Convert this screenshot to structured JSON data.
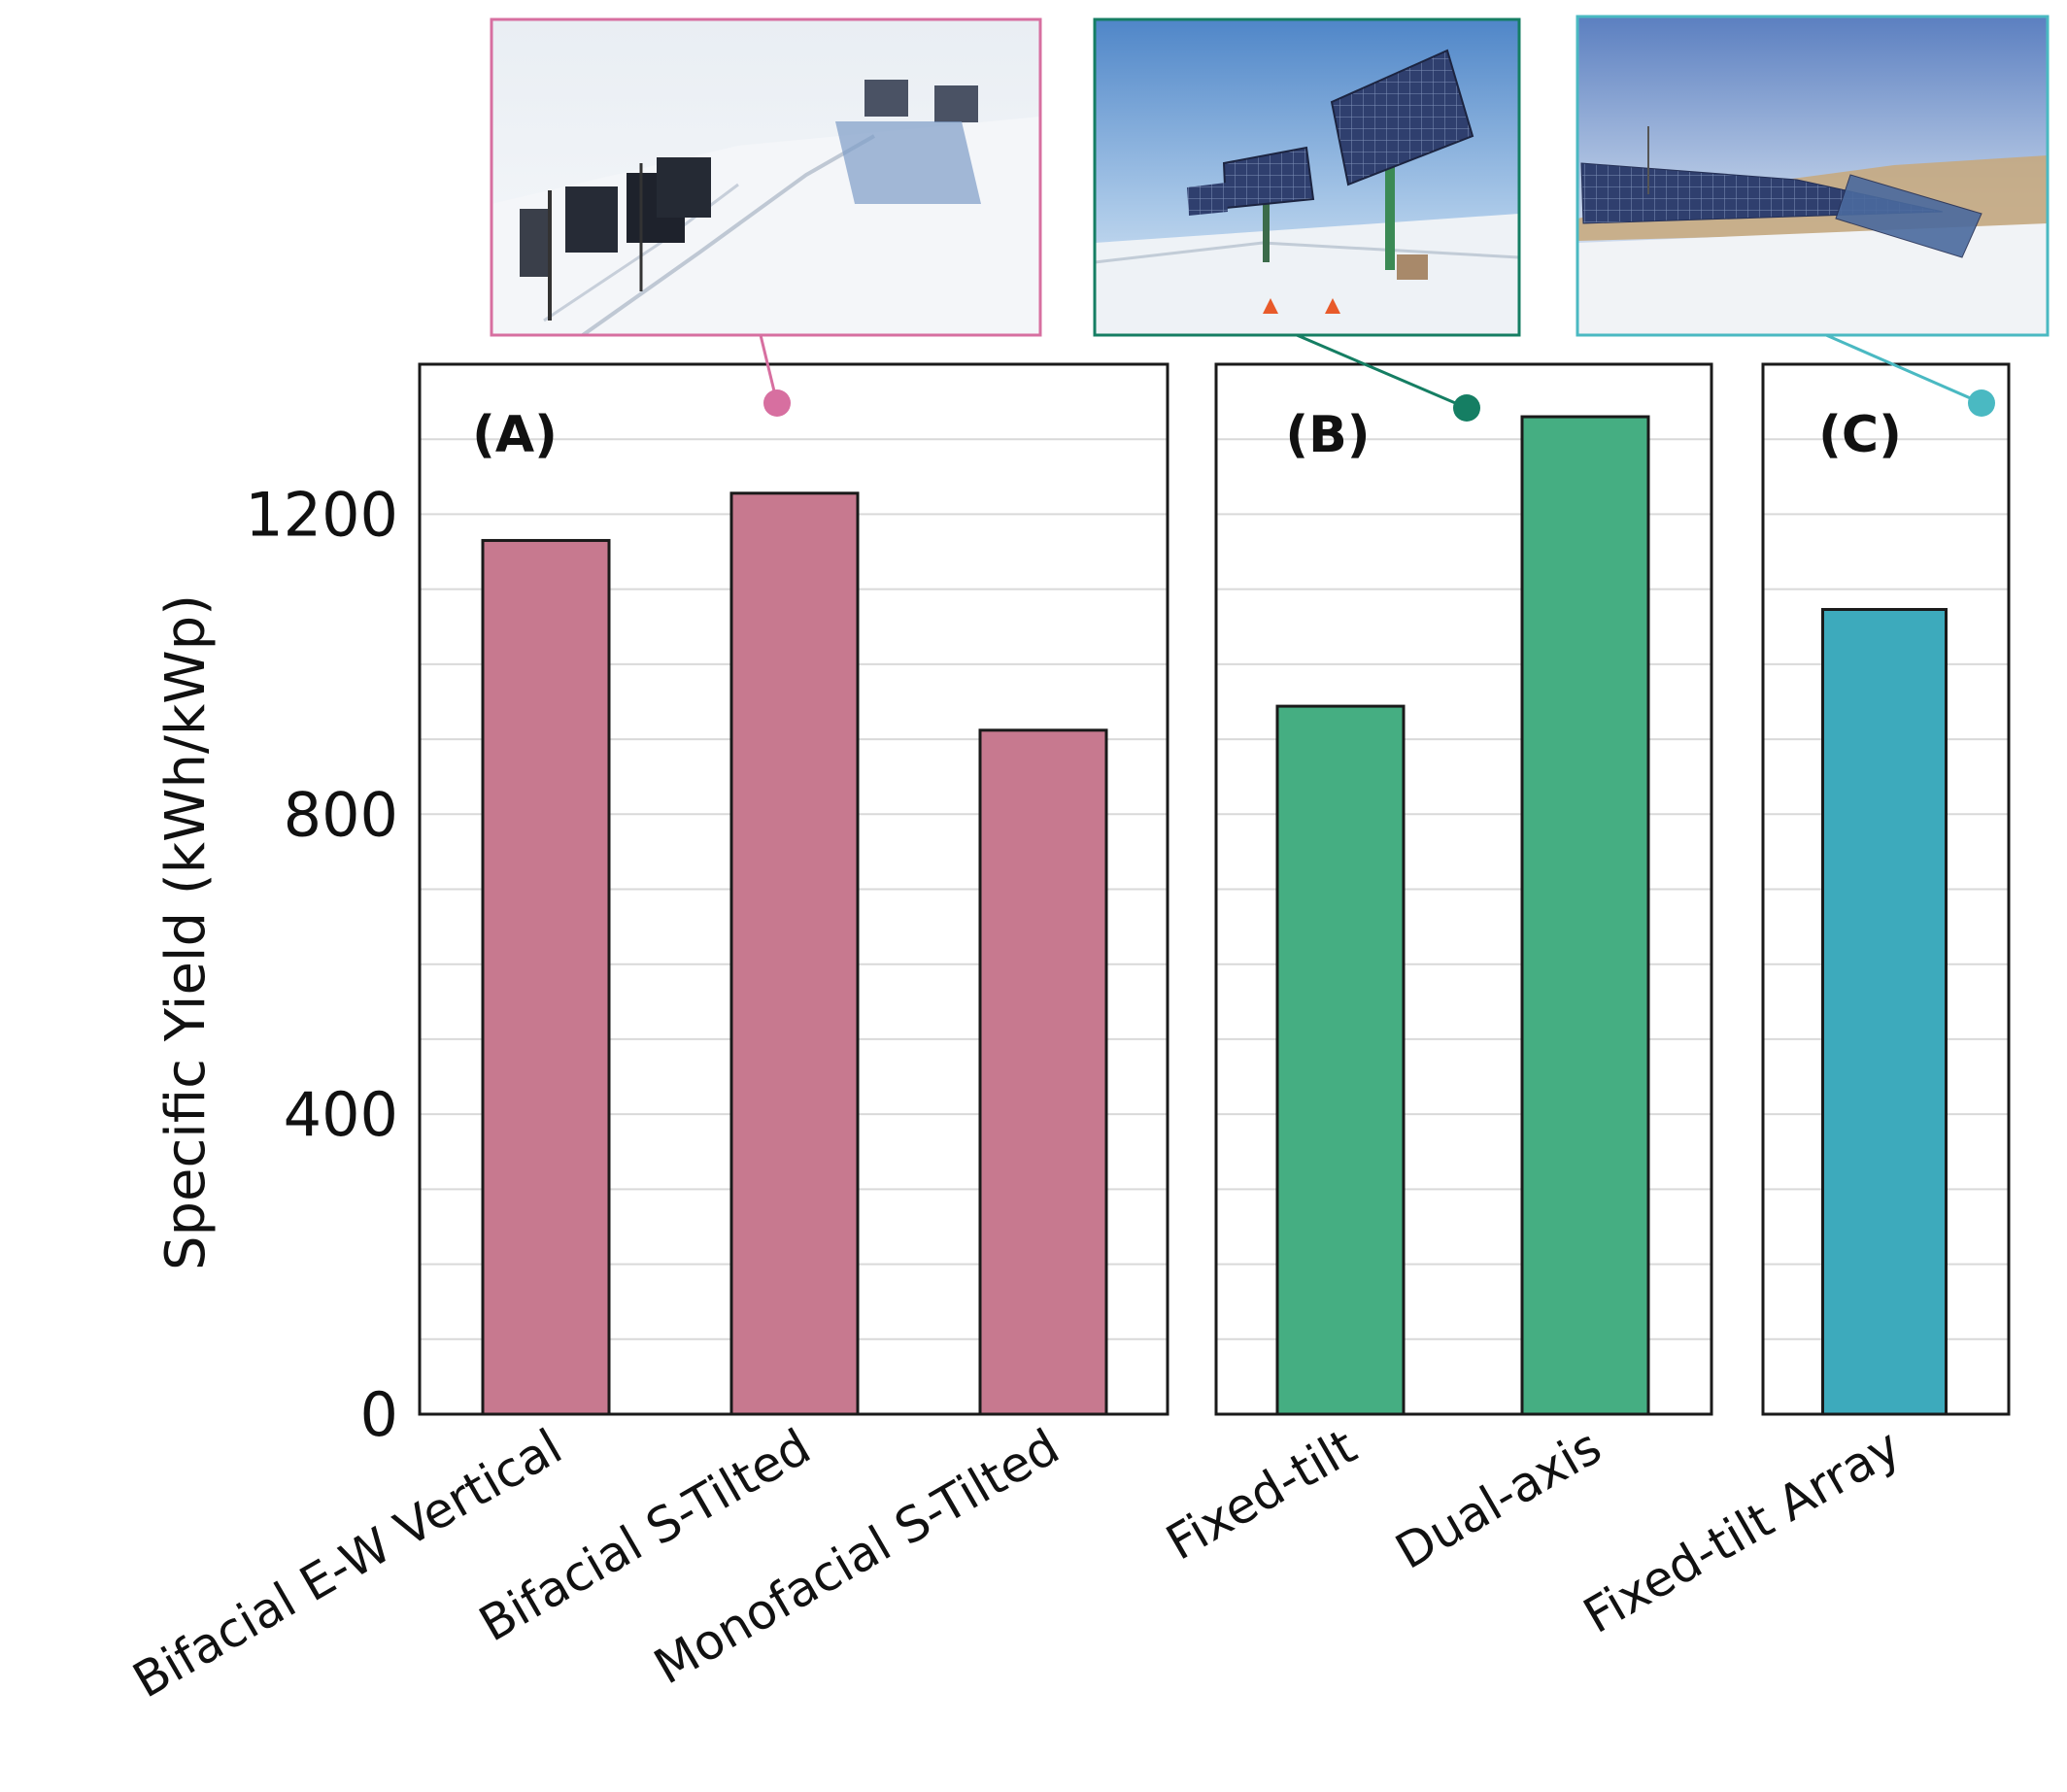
{
  "figure": {
    "ylabel": "Specific Yield (kWh/kWp)",
    "colors": {
      "A": "#c7798f",
      "B": "#45ae82",
      "C": "#3daabc",
      "photo_A": "#d76fa0",
      "photo_B": "#157e63",
      "photo_C": "#4ab9c2"
    }
  },
  "chart_data": {
    "type": "bar",
    "ylabel": "Specific Yield (kWh/kWp)",
    "ylim": [
      0,
      1400
    ],
    "yticks": [
      0,
      400,
      800,
      1200
    ],
    "grid": true,
    "panels": [
      {
        "label": "(A)",
        "categories": [
          "Bifacial E-W Vertical",
          "Bifacial S-Tilted",
          "Monofacial S-Tilted"
        ],
        "values": [
          1165,
          1228,
          912
        ],
        "color": "#c7798f",
        "photo": "snow-covered bifacial vertical and tilted test modules"
      },
      {
        "label": "(B)",
        "categories": [
          "Fixed-tilt",
          "Dual-axis"
        ],
        "values": [
          944,
          1330
        ],
        "color": "#45ae82",
        "photo": "dual-axis tracker arrays in snow"
      },
      {
        "label": "(C)",
        "categories": [
          "Fixed-tilt Array"
        ],
        "values": [
          1073
        ],
        "color": "#3daabc",
        "photo": "fixed-tilt solar array in winter field"
      }
    ]
  }
}
